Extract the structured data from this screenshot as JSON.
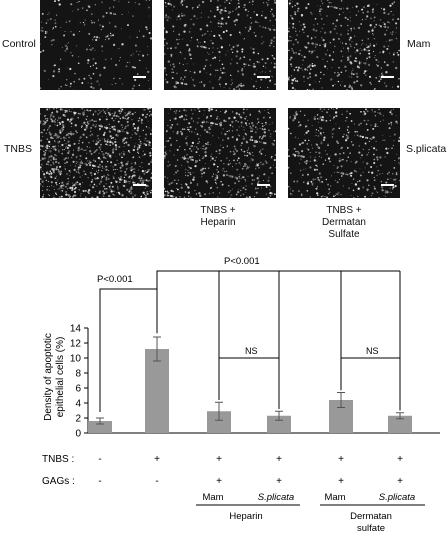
{
  "row_labels": {
    "control": "Control",
    "tnbs": "TNBS",
    "mam": "Mam",
    "splicata": "S.plicata"
  },
  "condition_labels": {
    "heparin_line1": "TNBS +",
    "heparin_line2": "Heparin",
    "dermatan_line1": "TNBS +",
    "dermatan_line2": "Dermatan",
    "dermatan_line3": "Sulfate"
  },
  "row_headers": {
    "tnbs": "TNBS :",
    "gags": "GAGs :"
  },
  "tnbs_row": [
    "-",
    "+",
    "+",
    "+",
    "+",
    "+"
  ],
  "gags_row": [
    "-",
    "-",
    "+",
    "+",
    "+",
    "+"
  ],
  "sources": {
    "mam1": "Mam",
    "spl1": "S.plicata",
    "mam2": "Mam",
    "spl2": "S.plicata"
  },
  "groups": {
    "heparin": "Heparin",
    "dermatan1": "Dermatan",
    "dermatan2": "sulfate"
  },
  "annotations": {
    "p1": "P<0.001",
    "p2": "P<0.001",
    "ns1": "NS",
    "ns2": "NS"
  },
  "chart_data": {
    "type": "bar",
    "ylabel": "Density of apoptotic epithelial cells (%)",
    "ylabel_line1": "Density of apoptotic",
    "ylabel_line2": "epithelial cells (%)",
    "ylim": [
      0,
      14
    ],
    "yticks": [
      0,
      2,
      4,
      6,
      8,
      10,
      12,
      14
    ],
    "values": [
      1.6,
      11.2,
      2.9,
      2.3,
      4.4,
      2.3
    ],
    "errors": [
      0.4,
      1.6,
      1.2,
      0.6,
      1.0,
      0.4
    ],
    "bar_color": "#999999"
  }
}
